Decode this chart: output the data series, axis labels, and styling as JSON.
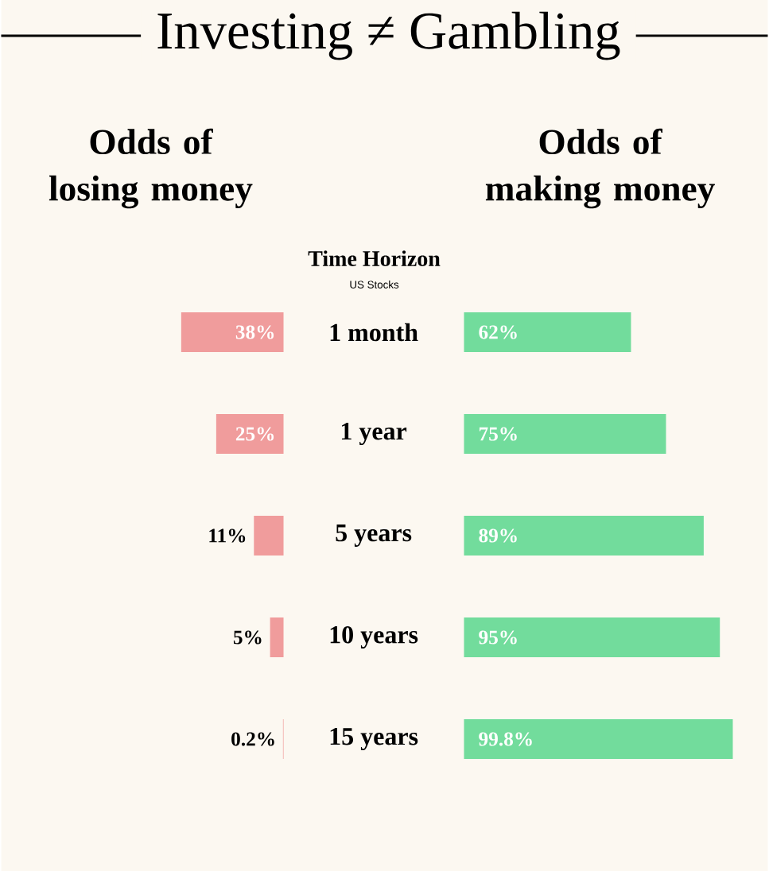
{
  "chart_data": [
    {
      "type": "bar",
      "orientation": "horizontal",
      "title": "Investing ≠ Gambling",
      "subtitle": "US Stocks",
      "ylabel": "Time Horizon",
      "categories": [
        "1 month",
        "1 year",
        "5 years",
        "10 years",
        "15 years"
      ],
      "series": [
        {
          "name": "Odds of losing money",
          "color": "#f09c9c",
          "values": [
            38,
            25,
            11,
            5,
            0.2
          ],
          "value_labels": [
            "38%",
            "25%",
            "11%",
            "5%",
            "0.2%"
          ]
        }
      ]
    },
    {
      "type": "bar",
      "orientation": "horizontal",
      "series": [
        {
          "name": "Odds of making money",
          "color": "#72dc9c",
          "values": [
            62,
            75,
            89,
            95,
            99.8
          ],
          "value_labels": [
            "62%",
            "75%",
            "89%",
            "95%",
            "99.8%"
          ]
        }
      ]
    }
  ]
}
